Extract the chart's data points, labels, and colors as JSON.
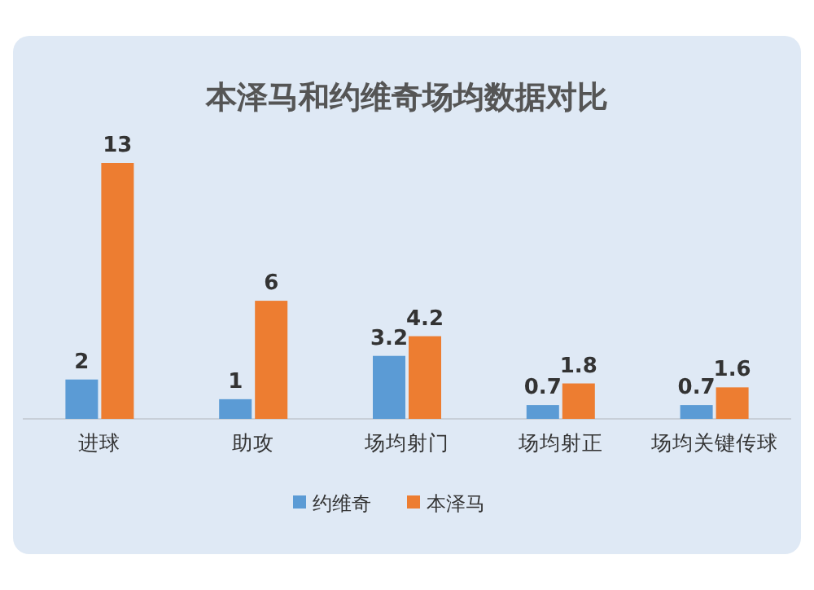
{
  "chart_data": {
    "type": "bar",
    "title": "本泽马和约维奇场均数据对比",
    "categories": [
      "进球",
      "助攻",
      "场均射门",
      "场均射正",
      "场均关键传球"
    ],
    "series": [
      {
        "name": "约维奇",
        "color": "#5b9bd5",
        "values": [
          2,
          1,
          3.2,
          0.7,
          0.7
        ]
      },
      {
        "name": "本泽马",
        "color": "#ed7d31",
        "values": [
          13,
          6,
          4.2,
          1.8,
          1.6
        ]
      }
    ],
    "data_labels": true,
    "legend": "bottom"
  }
}
